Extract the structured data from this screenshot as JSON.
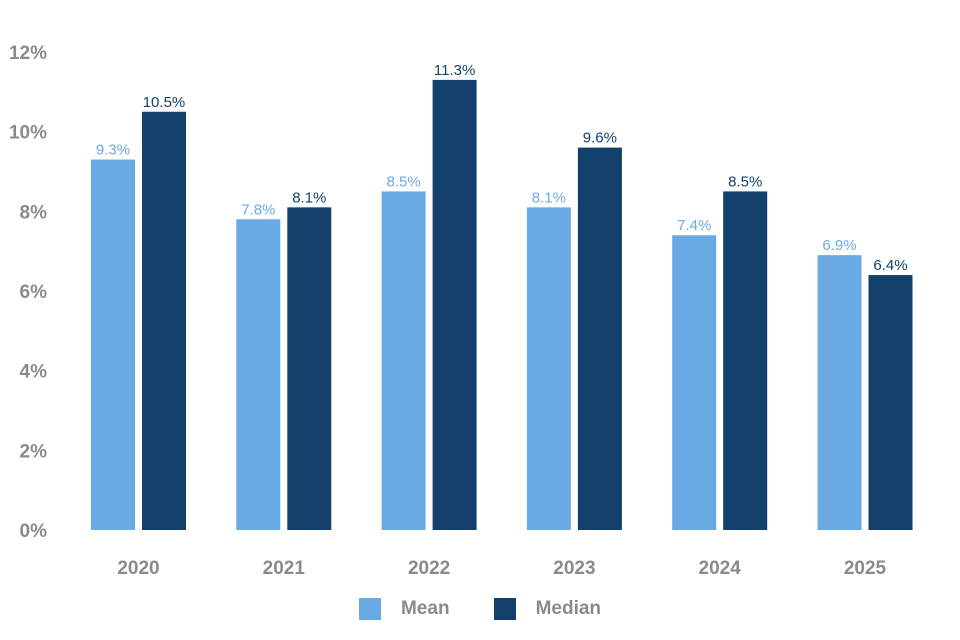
{
  "chart_data": {
    "type": "bar",
    "categories": [
      "2020",
      "2021",
      "2022",
      "2023",
      "2024",
      "2025"
    ],
    "series": [
      {
        "name": "Mean",
        "values": [
          9.3,
          7.8,
          8.5,
          8.1,
          7.4,
          6.9
        ],
        "color": "#6aaae4",
        "labels": [
          "9.3%",
          "7.8%",
          "8.5%",
          "8.1%",
          "7.4%",
          "6.9%"
        ],
        "label_color": "#6aaae4"
      },
      {
        "name": "Median",
        "values": [
          10.5,
          8.1,
          11.3,
          9.6,
          8.5,
          6.4
        ],
        "color": "#13406a",
        "labels": [
          "10.5%",
          "8.1%",
          "11.3%",
          "9.6%",
          "8.5%",
          "6.4%"
        ],
        "label_color": "#13406a"
      }
    ],
    "yticks": [
      "0%",
      "2%",
      "4%",
      "6%",
      "8%",
      "10%",
      "12%"
    ],
    "ylim": [
      0,
      12
    ],
    "grid": false,
    "legend_position": "bottom"
  }
}
